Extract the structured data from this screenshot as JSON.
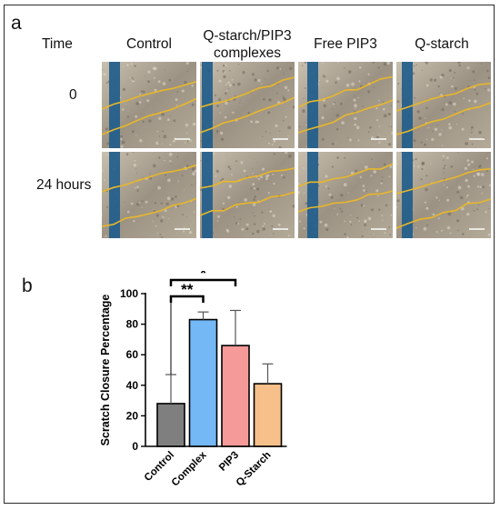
{
  "panel_a": {
    "letter": "a",
    "time_header": "Time",
    "columns": [
      "Control",
      "Q-starch/PIP3\ncomplexes",
      "Free PIP3",
      "Q-starch"
    ],
    "rows": [
      "0",
      "24 hours"
    ]
  },
  "panel_b": {
    "letter": "b"
  },
  "colors": {
    "scratch_line": "#e8b72a",
    "blue_stripe": "#1e5c8c",
    "bar_control": "#7f7f7f",
    "bar_complex": "#74b8f5",
    "bar_pip3": "#f59a98",
    "bar_qstarch": "#f7c08a"
  },
  "chart_data": {
    "type": "bar",
    "categories": [
      "Control",
      "Complex",
      "PIP3",
      "Q-Starch"
    ],
    "values": [
      28,
      83,
      66,
      41
    ],
    "errors": [
      19,
      5,
      23,
      13
    ],
    "ylabel": "Scratch Closure Percentage",
    "xlabel": "",
    "ylim": [
      0,
      100
    ],
    "yticks": [
      0,
      20,
      40,
      60,
      80,
      100
    ],
    "significance": [
      {
        "from": "Control",
        "to": "Complex",
        "label": "**"
      },
      {
        "from": "Control",
        "to": "PIP3",
        "label": "*"
      }
    ]
  }
}
